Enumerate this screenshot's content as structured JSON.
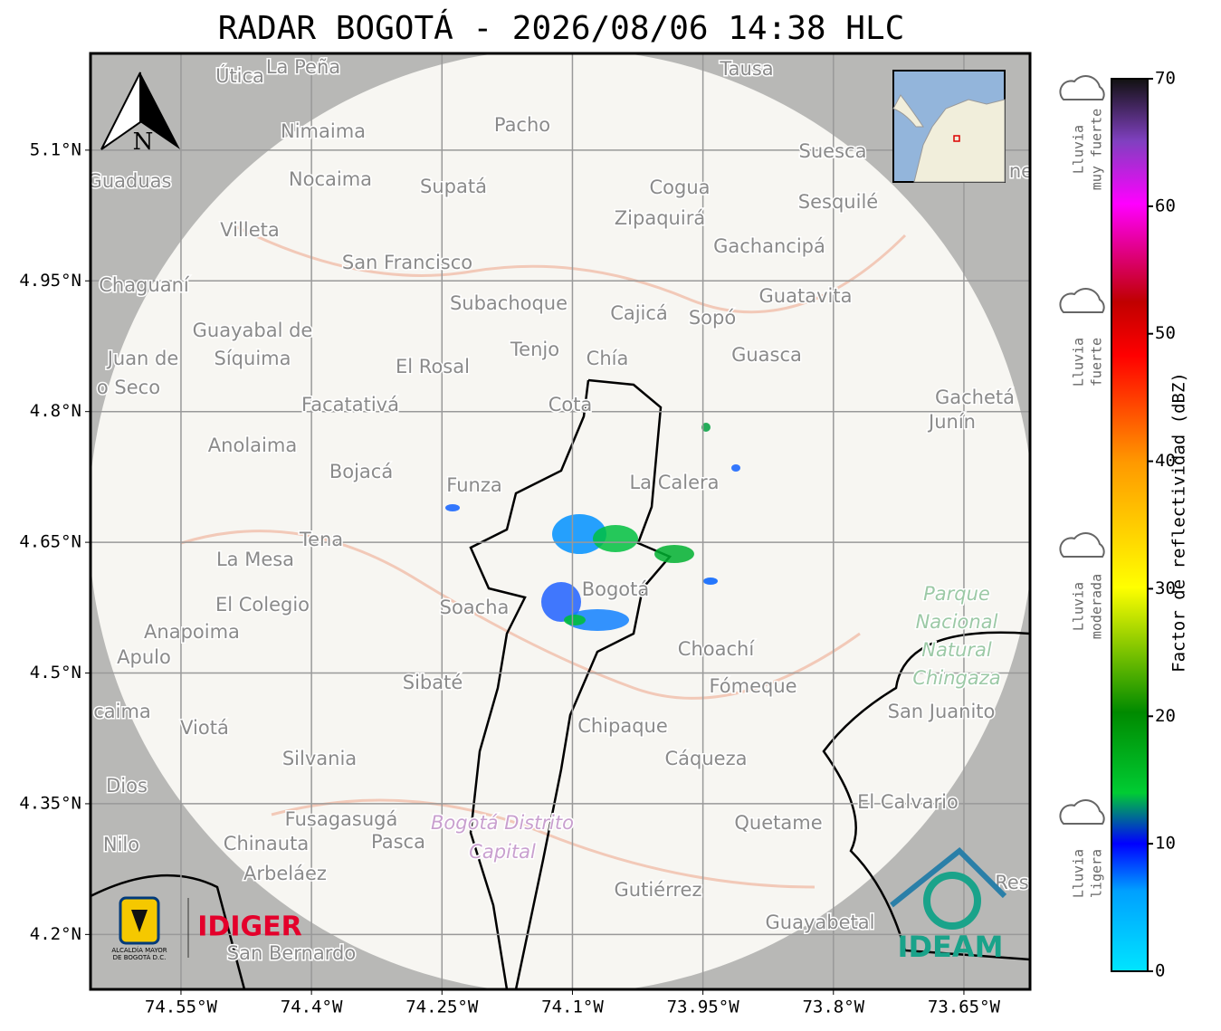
{
  "title": "RADAR BOGOTÁ - 2026/08/06 14:38 HLC",
  "map": {
    "xlim": [
      -74.654,
      -73.574
    ],
    "ylim": [
      4.137,
      5.211
    ],
    "xticks": [
      {
        "value": -74.55,
        "label": "74.55°W"
      },
      {
        "value": -74.4,
        "label": "74.4°W"
      },
      {
        "value": -74.25,
        "label": "74.25°W"
      },
      {
        "value": -74.1,
        "label": "74.1°W"
      },
      {
        "value": -73.95,
        "label": "73.95°W"
      },
      {
        "value": -73.8,
        "label": "73.8°W"
      },
      {
        "value": -73.65,
        "label": "73.65°W"
      }
    ],
    "yticks": [
      {
        "value": 5.1,
        "label": "5.1°N"
      },
      {
        "value": 4.95,
        "label": "4.95°N"
      },
      {
        "value": 4.8,
        "label": "4.8°N"
      },
      {
        "value": 4.65,
        "label": "4.65°N"
      },
      {
        "value": 4.5,
        "label": "4.5°N"
      },
      {
        "value": 4.35,
        "label": "4.35°N"
      },
      {
        "value": 4.2,
        "label": "4.2°N"
      }
    ],
    "north": "N",
    "places": [
      "Útica",
      "La Peña",
      "Tausa",
      "Pacho",
      "Nimaima",
      "Suesca",
      "Guaduas",
      "Nocaima",
      "Supatá",
      "Cogua",
      "Sesquilé",
      "Zipaquirá",
      "Villeta",
      "Gachancipá",
      "San Francisco",
      "Chaguaní",
      "Guatavita",
      "Subachoque",
      "Cajicá",
      "Sopó",
      "Guayabal de",
      "Tenjo",
      "Chía",
      "Guasca",
      "Juan de",
      "Síquima",
      "El Rosal",
      "o Seco",
      "Gachetá",
      "Facatativá",
      "Cota",
      "Junín",
      "Anolaima",
      "Bojacá",
      "Funza",
      "La Calera",
      "Tena",
      "La Mesa",
      "Bogotá",
      "Soacha",
      "El Colegio",
      "Anapoima",
      "Apulo",
      "Choachí",
      "Sibaté",
      "Fómeque",
      "San Juanito",
      "caima",
      "Viotá",
      "Chipaque",
      "Silvania",
      "Cáqueza",
      "Dios",
      "El Calvario",
      "Fusagasugá",
      "Quetame",
      "Nilo",
      "Chinauta",
      "Pasca",
      "Arbeláez",
      "Gutiérrez",
      "Guayabetal",
      "San Bernardo",
      "Res",
      "ne"
    ],
    "park": [
      "Parque",
      "Nacional",
      "Natural",
      "Chingaza"
    ],
    "district": [
      "Bogotá Distrito",
      "Capital"
    ]
  },
  "colorbar": {
    "label": "Factor de reflectividad (dBZ)",
    "ylim": [
      0,
      70
    ],
    "yticks": [
      0,
      10,
      20,
      30,
      40,
      50,
      60,
      70
    ]
  },
  "rain_levels": [
    [
      "Lluvia",
      "muy fuerte"
    ],
    [
      "Lluvia",
      "fuerte"
    ],
    [
      "Lluvia",
      "moderada"
    ],
    [
      "Lluvia",
      "ligera"
    ]
  ],
  "logos": {
    "alcaldia": [
      "ALCALDÍA MAYOR",
      "DE BOGOTÁ D.C."
    ],
    "idiger": "IDIGER",
    "ideam": "IDEAM"
  }
}
